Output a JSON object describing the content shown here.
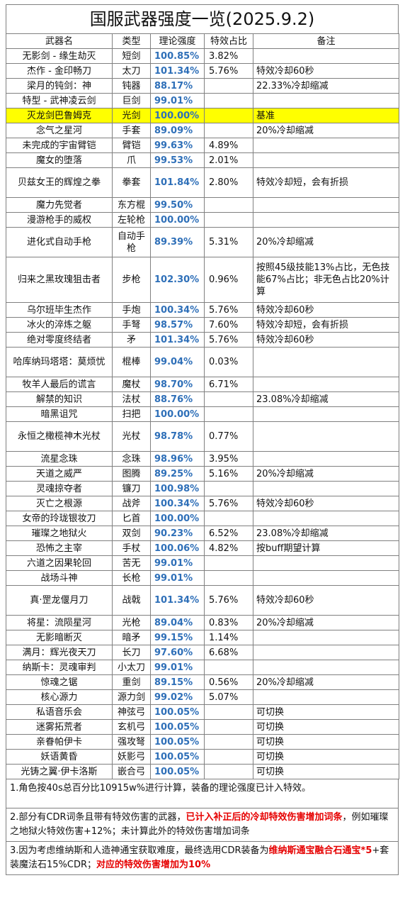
{
  "title": "国服武器强度一览(2025.9.2)",
  "headers": [
    "武器名",
    "类型",
    "理论强度",
    "特效占比",
    "备注"
  ],
  "rows": [
    {
      "name": "无影剑 - 缘生劫灭",
      "type": "短剑",
      "score": "100.85%",
      "effect": "3.82%",
      "note": "",
      "h": 21
    },
    {
      "name": "杰作 - 金印畅刀",
      "type": "太刀",
      "score": "101.34%",
      "effect": "5.76%",
      "note": "特效冷却60秒",
      "h": 21
    },
    {
      "name": "梁月的钝剑：神",
      "type": "钝器",
      "score": "88.17%",
      "effect": "",
      "note": "22.33%冷却缩减",
      "h": 21
    },
    {
      "name": "特型 - 武神凌云剑",
      "type": "巨剑",
      "score": "99.01%",
      "effect": "",
      "note": "",
      "h": 21
    },
    {
      "name": "灭龙剑巴鲁姆克",
      "type": "光剑",
      "score": "100.00%",
      "effect": "",
      "note": "基准",
      "h": 21,
      "highlight": true
    },
    {
      "name": "念气之星河",
      "type": "手套",
      "score": "89.09%",
      "effect": "",
      "note": "20%冷却缩减",
      "h": 21
    },
    {
      "name": "未完成的宇宙臂铠",
      "type": "臂铠",
      "score": "99.63%",
      "effect": "4.89%",
      "note": "",
      "h": 21
    },
    {
      "name": "魔女的堕落",
      "type": "爪",
      "score": "99.53%",
      "effect": "2.01%",
      "note": "",
      "h": 21
    },
    {
      "name": "贝兹女王的辉煌之拳",
      "type": "拳套",
      "score": "101.84%",
      "effect": "2.80%",
      "note": "特效冷却短，会有折损",
      "h": 42
    },
    {
      "name": "魔力先觉者",
      "type": "东方棍",
      "score": "99.50%",
      "effect": "",
      "note": "",
      "h": 21
    },
    {
      "name": "漫游枪手的威权",
      "type": "左轮枪",
      "score": "100.00%",
      "effect": "",
      "note": "",
      "h": 21
    },
    {
      "name": "进化式自动手枪",
      "type": "自动手枪",
      "score": "89.39%",
      "effect": "5.31%",
      "note": "20%冷却缩减",
      "h": 42
    },
    {
      "name": "归来之黑玫瑰狙击者",
      "type": "步枪",
      "score": "102.30%",
      "effect": "0.96%",
      "note": "按照45级技能13%占比，无色技能67%占比；非无色占比20%计算",
      "h": 64
    },
    {
      "name": "乌尔班毕生杰作",
      "type": "手炮",
      "score": "100.34%",
      "effect": "5.76%",
      "note": "特效冷却60秒",
      "h": 21
    },
    {
      "name": "冰火的淬炼之躯",
      "type": "手弩",
      "score": "98.57%",
      "effect": "7.60%",
      "note": "特效冷却短，会有折损",
      "h": 21
    },
    {
      "name": "绝对零度终结者",
      "type": "矛",
      "score": "101.34%",
      "effect": "5.76%",
      "note": "特效冷却60秒",
      "h": 21
    },
    {
      "name": "哈库纳玛塔塔：莫烦忧",
      "type": "棍棒",
      "score": "99.04%",
      "effect": "0.03%",
      "note": "",
      "h": 42
    },
    {
      "name": "牧羊人最后的谎言",
      "type": "魔杖",
      "score": "98.70%",
      "effect": "6.71%",
      "note": "",
      "h": 21
    },
    {
      "name": "解禁的知识",
      "type": "法杖",
      "score": "88.76%",
      "effect": "",
      "note": "23.08%冷却缩减",
      "h": 21
    },
    {
      "name": "暗黑诅咒",
      "type": "扫把",
      "score": "100.00%",
      "effect": "",
      "note": "",
      "h": 21
    },
    {
      "name": "永恒之橄榄神木光杖",
      "type": "光杖",
      "score": "98.78%",
      "effect": "0.77%",
      "note": "",
      "h": 42
    },
    {
      "name": "流星念珠",
      "type": "念珠",
      "score": "98.96%",
      "effect": "3.95%",
      "note": "",
      "h": 21
    },
    {
      "name": "天道之威严",
      "type": "图腾",
      "score": "89.25%",
      "effect": "5.16%",
      "note": "20%冷却缩减",
      "h": 21
    },
    {
      "name": "灵魂掠夺者",
      "type": "镰刀",
      "score": "100.98%",
      "effect": "",
      "note": "",
      "h": 21
    },
    {
      "name": "灭亡之根源",
      "type": "战斧",
      "score": "100.34%",
      "effect": "5.76%",
      "note": "特效冷却60秒",
      "h": 21
    },
    {
      "name": "女帝的玲珑银妆刀",
      "type": "匕首",
      "score": "100.00%",
      "effect": "",
      "note": "",
      "h": 21
    },
    {
      "name": "璀璨之地狱火",
      "type": "双剑",
      "score": "90.23%",
      "effect": "6.52%",
      "note": "23.08%冷却缩减",
      "h": 21
    },
    {
      "name": "恐怖之主宰",
      "type": "手杖",
      "score": "100.06%",
      "effect": "4.82%",
      "note": "按buff期望计算",
      "h": 21
    },
    {
      "name": "六道之因果轮回",
      "type": "苦无",
      "score": "99.01%",
      "effect": "",
      "note": "",
      "h": 21
    },
    {
      "name": "战场斗神",
      "type": "长枪",
      "score": "99.01%",
      "effect": "",
      "note": "",
      "h": 21
    },
    {
      "name": "真·罡龙偃月刀",
      "type": "战戟",
      "score": "101.34%",
      "effect": "5.76%",
      "note": "特效冷却60秒",
      "h": 42
    },
    {
      "name": "将星：流陨星河",
      "type": "光枪",
      "score": "89.04%",
      "effect": "0.83%",
      "note": "20%冷却缩减",
      "h": 21
    },
    {
      "name": "无影暗断灭",
      "type": "暗矛",
      "score": "99.15%",
      "effect": "1.14%",
      "note": "",
      "h": 21
    },
    {
      "name": "满月：辉光夜天刀",
      "type": "长刀",
      "score": "97.60%",
      "effect": "6.68%",
      "note": "",
      "h": 21
    },
    {
      "name": "纳斯卡：灵魂审判",
      "type": "小太刀",
      "score": "99.01%",
      "effect": "",
      "note": "",
      "h": 21
    },
    {
      "name": "惊魂之锯",
      "type": "重剑",
      "score": "89.15%",
      "effect": "0.56%",
      "note": "20%冷却缩减",
      "h": 21
    },
    {
      "name": "核心源力",
      "type": "源力剑",
      "score": "99.02%",
      "effect": "5.07%",
      "note": "",
      "h": 21
    },
    {
      "name": "私语音乐会",
      "type": "神弦弓",
      "score": "100.05%",
      "effect": "",
      "note": "可切换",
      "h": 21
    },
    {
      "name": "迷雾拓荒者",
      "type": "玄机弓",
      "score": "100.05%",
      "effect": "",
      "note": "可切换",
      "h": 21
    },
    {
      "name": "亲眷帕伊卡",
      "type": "强攻弩",
      "score": "100.05%",
      "effect": "",
      "note": "可切换",
      "h": 21
    },
    {
      "name": "妖语黄昏",
      "type": "妖影弓",
      "score": "100.05%",
      "effect": "",
      "note": "可切换",
      "h": 21
    },
    {
      "name": "光铸之翼·伊卡洛斯",
      "type": "嵌合弓",
      "score": "100.05%",
      "effect": "",
      "note": "可切换",
      "h": 21
    }
  ],
  "notes": [
    {
      "h": 40,
      "parts": [
        {
          "text": "1.角色按40s总百分比10915w%进行计算，装备的理论强度已计入特效。",
          "red": false
        }
      ]
    },
    {
      "h": 42,
      "parts": [
        {
          "text": "2.部分有CDR词条且带有特效伤害的武器，",
          "red": false
        },
        {
          "text": "已计入补正后的冷却特效伤害增加词条",
          "red": true
        },
        {
          "text": "，例如璀璨之地狱火特效伤害+12%；未计算此外的特效伤害增加词条",
          "red": false
        }
      ]
    },
    {
      "h": 43,
      "parts": [
        {
          "text": "3.因为考虑维纳斯和人造神通宝获取难度，最终选用CDR装备为",
          "red": false
        },
        {
          "text": "维纳斯通宝融合石通宝*5",
          "red": true
        },
        {
          "text": "+套装魔法石15%CDR；",
          "red": false
        },
        {
          "text": "对应的特效伤害增加为10%",
          "red": true
        }
      ]
    }
  ]
}
